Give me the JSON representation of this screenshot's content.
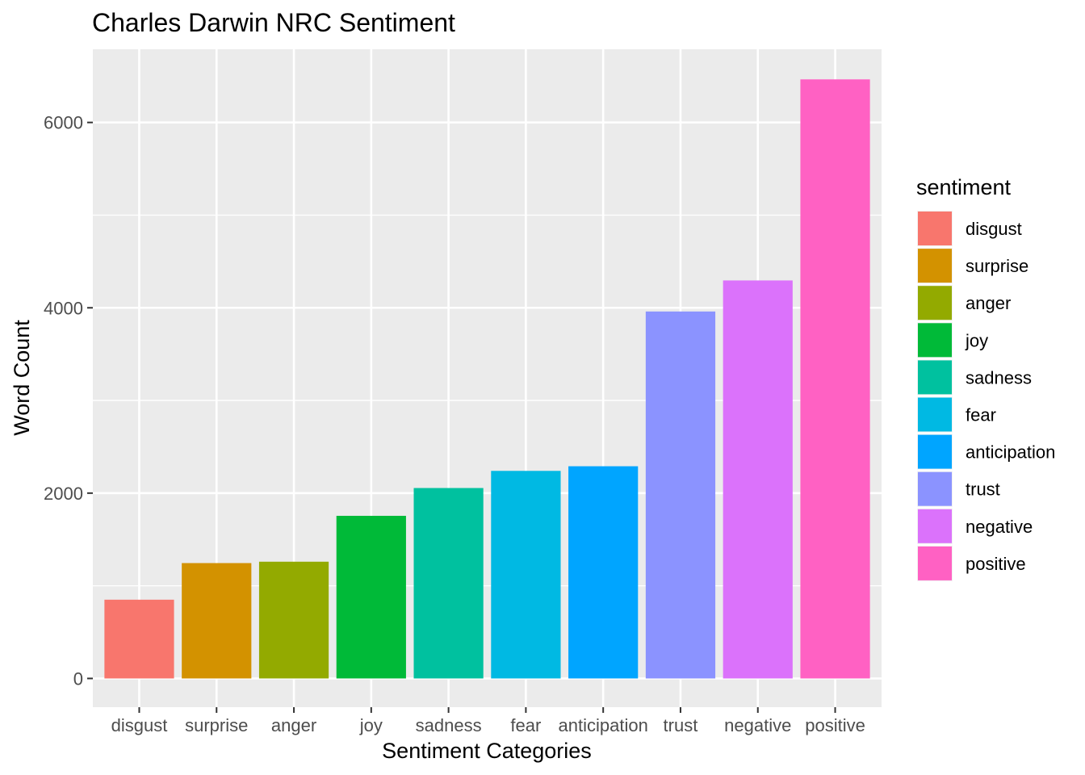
{
  "chart_data": {
    "type": "bar",
    "title": "Charles Darwin NRC Sentiment",
    "xlabel": "Sentiment Categories",
    "ylabel": "Word Count",
    "categories": [
      "disgust",
      "surprise",
      "anger",
      "joy",
      "sadness",
      "fear",
      "anticipation",
      "trust",
      "negative",
      "positive"
    ],
    "values": [
      850,
      1245,
      1260,
      1755,
      2055,
      2240,
      2290,
      3960,
      4295,
      6465
    ],
    "colors": [
      "#F8766D",
      "#D39200",
      "#93AA00",
      "#00BA38",
      "#00C19F",
      "#00B9E3",
      "#00A5FF",
      "#8B93FF",
      "#DB72FB",
      "#FF61C3"
    ],
    "ylim": [
      -310,
      6790
    ],
    "yticks": [
      0,
      2000,
      4000,
      6000
    ],
    "y_minor_ticks": [
      1000,
      3000,
      5000
    ],
    "grid": true,
    "legend": {
      "title": "sentiment",
      "position": "right",
      "entries": [
        "disgust",
        "surprise",
        "anger",
        "joy",
        "sadness",
        "fear",
        "anticipation",
        "trust",
        "negative",
        "positive"
      ]
    }
  }
}
